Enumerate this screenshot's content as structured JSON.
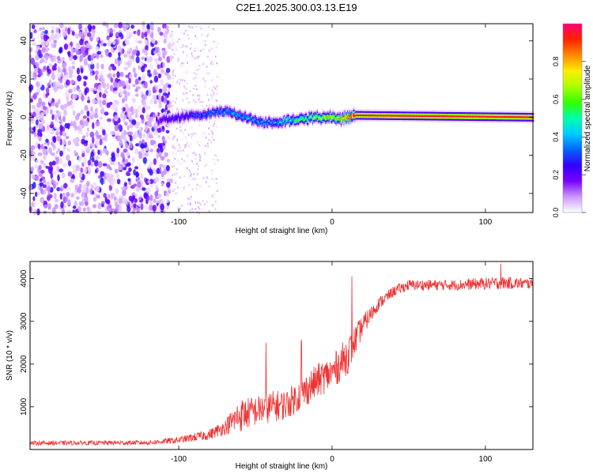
{
  "title": "C2E1.2025.300.03.13.E19",
  "chart_data": [
    {
      "type": "heatmap",
      "name": "spectrogram",
      "xlabel": "Height of straight line (km)",
      "ylabel": "Frequency (Hz)",
      "xlim": [
        -197,
        131
      ],
      "ylim": [
        -50,
        49
      ],
      "xticks": [
        -100,
        0,
        100
      ],
      "yticks": [
        -40,
        -20,
        0,
        20,
        40
      ],
      "colorbar": {
        "label": "Normalized spectral amplitude",
        "range": [
          0,
          1
        ],
        "ticks": [
          0.0,
          0.2,
          0.4,
          0.6,
          0.8
        ],
        "colormap": [
          "#ffffff",
          "#cc99ff",
          "#7700ff",
          "#3300ff",
          "#0066ff",
          "#00ccff",
          "#00ffaa",
          "#33ff00",
          "#aaff00",
          "#ffee00",
          "#ff8800",
          "#ff2200",
          "#ff0077"
        ]
      },
      "features": [
        {
          "region": "noise",
          "x_range": [
            -197,
            -105
          ],
          "freq_range": [
            -50,
            49
          ],
          "amplitude": 0.15
        },
        {
          "region": "faint-noise",
          "x_range": [
            -105,
            -75
          ],
          "freq_range": [
            -50,
            49
          ],
          "amplitude": 0.06
        },
        {
          "region": "signal-line",
          "x_range": [
            -115,
            131
          ],
          "center_freq": [
            [
              -115,
              -2
            ],
            [
              -100,
              0
            ],
            [
              -90,
              1
            ],
            [
              -80,
              2
            ],
            [
              -70,
              3
            ],
            [
              -60,
              1
            ],
            [
              -50,
              -2
            ],
            [
              -40,
              -3
            ],
            [
              -30,
              -2
            ],
            [
              -20,
              -1
            ],
            [
              -10,
              0
            ],
            [
              0,
              0
            ],
            [
              5,
              -1
            ],
            [
              15,
              1
            ],
            [
              131,
              0
            ]
          ],
          "amplitude_by_x": [
            [
              -115,
              0.2
            ],
            [
              -90,
              0.3
            ],
            [
              -60,
              0.4
            ],
            [
              -40,
              0.35
            ],
            [
              -20,
              0.55
            ],
            [
              0,
              0.7
            ],
            [
              15,
              0.95
            ],
            [
              131,
              0.95
            ]
          ]
        }
      ]
    },
    {
      "type": "line",
      "name": "snr",
      "xlabel": "Height of straight line (km)",
      "ylabel": "SNR (10 * v/v)",
      "xlim": [
        -197,
        131
      ],
      "ylim": [
        0,
        4400
      ],
      "xticks": [
        -100,
        0,
        100
      ],
      "yticks": [
        1000,
        2000,
        3000,
        4000
      ],
      "color": "#ee3333",
      "series_envelope": [
        {
          "x": -197,
          "mean": 150,
          "spread": 100
        },
        {
          "x": -120,
          "mean": 160,
          "spread": 110
        },
        {
          "x": -100,
          "mean": 220,
          "spread": 150
        },
        {
          "x": -80,
          "mean": 350,
          "spread": 250
        },
        {
          "x": -70,
          "mean": 520,
          "spread": 350
        },
        {
          "x": -60,
          "mean": 800,
          "spread": 800
        },
        {
          "x": -50,
          "mean": 900,
          "spread": 700
        },
        {
          "x": -40,
          "mean": 1000,
          "spread": 750
        },
        {
          "x": -30,
          "mean": 1050,
          "spread": 700
        },
        {
          "x": -20,
          "mean": 1300,
          "spread": 750
        },
        {
          "x": -10,
          "mean": 1600,
          "spread": 800
        },
        {
          "x": 0,
          "mean": 1800,
          "spread": 800
        },
        {
          "x": 10,
          "mean": 2200,
          "spread": 900
        },
        {
          "x": 20,
          "mean": 2900,
          "spread": 500
        },
        {
          "x": 30,
          "mean": 3400,
          "spread": 300
        },
        {
          "x": 40,
          "mean": 3700,
          "spread": 250
        },
        {
          "x": 50,
          "mean": 3850,
          "spread": 250
        },
        {
          "x": 80,
          "mean": 3850,
          "spread": 250
        },
        {
          "x": 110,
          "mean": 3900,
          "spread": 300
        },
        {
          "x": 131,
          "mean": 3880,
          "spread": 250
        }
      ],
      "peaks": [
        {
          "x": 13,
          "y": 4050
        },
        {
          "x": 110,
          "y": 4350
        },
        {
          "x": -43,
          "y": 2500
        },
        {
          "x": -20,
          "y": 2550
        }
      ]
    }
  ]
}
